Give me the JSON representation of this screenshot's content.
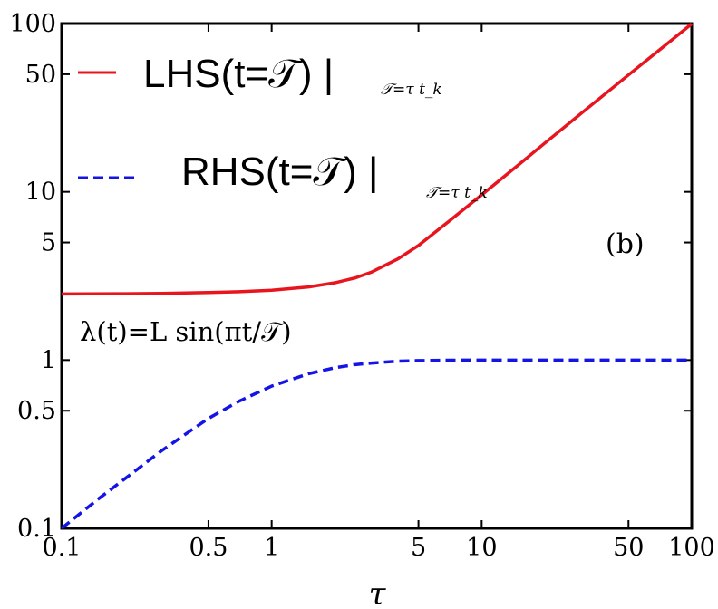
{
  "chart_data": {
    "type": "line",
    "xscale": "log",
    "yscale": "log",
    "xlim": [
      0.1,
      100
    ],
    "ylim": [
      0.1,
      100
    ],
    "xlabel": "τ",
    "x_ticks": [
      {
        "value": 0.1,
        "label": "0.1"
      },
      {
        "value": 0.5,
        "label": "0.5"
      },
      {
        "value": 1,
        "label": "1"
      },
      {
        "value": 5,
        "label": "5"
      },
      {
        "value": 10,
        "label": "10"
      },
      {
        "value": 50,
        "label": "50"
      },
      {
        "value": 100,
        "label": "100"
      }
    ],
    "y_ticks": [
      {
        "value": 0.1,
        "label": "0.1"
      },
      {
        "value": 0.5,
        "label": "0.5"
      },
      {
        "value": 1,
        "label": "1"
      },
      {
        "value": 5,
        "label": "5"
      },
      {
        "value": 10,
        "label": "10"
      },
      {
        "value": 50,
        "label": "50"
      },
      {
        "value": 100,
        "label": "100"
      }
    ],
    "series": [
      {
        "name": "LHS(t=𝒯) |",
        "subscript": "𝒯=τ t_k",
        "color": "#e8141e",
        "dash": "solid",
        "x": [
          0.1,
          0.2,
          0.3,
          0.5,
          0.7,
          1,
          1.5,
          2,
          2.5,
          3,
          4,
          5,
          7,
          10,
          15,
          20,
          30,
          50,
          70,
          100
        ],
        "y": [
          2.47,
          2.48,
          2.49,
          2.52,
          2.55,
          2.6,
          2.72,
          2.88,
          3.08,
          3.34,
          4.0,
          4.8,
          6.7,
          9.6,
          14.5,
          19.5,
          29.5,
          49.5,
          69.5,
          99.5
        ]
      },
      {
        "name": "RHS(t=𝒯) |",
        "subscript": "𝒯=τ t_k",
        "color": "#1414e6",
        "dash": "dashed",
        "x": [
          0.1,
          0.15,
          0.2,
          0.3,
          0.5,
          0.7,
          1,
          1.5,
          2,
          2.5,
          3,
          4,
          5,
          7,
          10,
          20,
          50,
          100
        ],
        "y": [
          0.1,
          0.15,
          0.197,
          0.29,
          0.45,
          0.57,
          0.7,
          0.83,
          0.9,
          0.94,
          0.96,
          0.985,
          0.993,
          0.998,
          1.0,
          1.0,
          1.0,
          1.0
        ]
      }
    ],
    "annotations": [
      "λ(t)=L sin(πt/𝒯)",
      "(b)"
    ],
    "legend_position": "top-left",
    "grid": false
  }
}
